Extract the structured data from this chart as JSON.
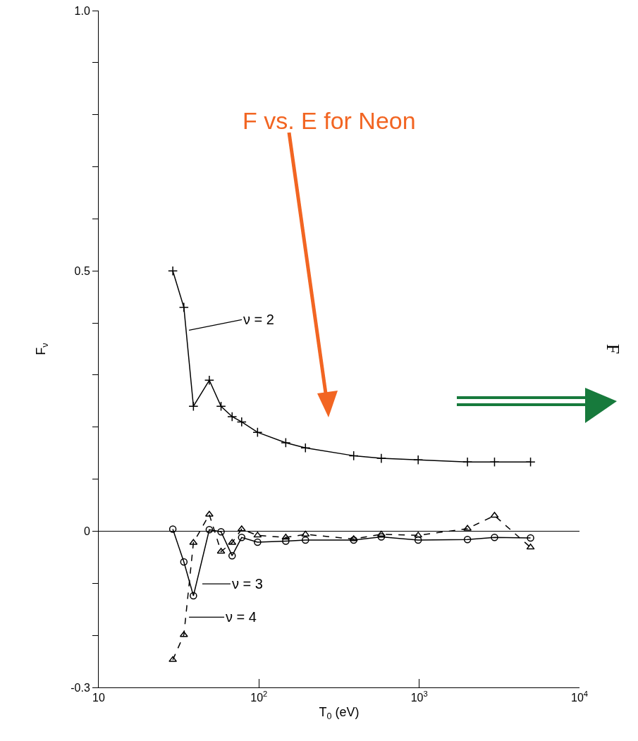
{
  "chart_data": {
    "type": "line",
    "xlabel": "T$_{0}$ (eV)",
    "ylabel": "F$_{ν}$",
    "x": [
      29,
      34,
      39,
      49,
      58,
      68,
      78,
      98,
      147,
      195,
      390,
      580,
      985,
      2000,
      2950,
      4950
    ],
    "series": [
      {
        "color": "#000000",
        "marker": "cross",
        "line_style": "solid",
        "values": [
          0.5,
          0.43,
          0.24,
          0.29,
          0.24,
          0.22,
          0.21,
          0.19,
          0.17,
          0.16,
          0.145,
          0.14,
          0.137,
          0.133,
          0.133,
          0.133
        ]
      },
      {
        "color": "#000000",
        "marker": "circle",
        "line_style": "solid",
        "values": [
          0.004,
          -0.059,
          -0.124,
          0.003,
          -0.001,
          -0.047,
          -0.012,
          -0.021,
          -0.019,
          -0.017,
          -0.017,
          -0.011,
          -0.017,
          -0.016,
          -0.012,
          -0.013
        ]
      },
      {
        "color": "#000000",
        "marker": "triangle",
        "line_style": "dashed",
        "values": [
          -0.247,
          -0.199,
          -0.022,
          0.032,
          -0.039,
          -0.022,
          0.004,
          -0.008,
          -0.012,
          -0.006,
          -0.015,
          -0.006,
          -0.008,
          0.005,
          0.03,
          -0.031
        ]
      }
    ],
    "xlim": [
      10,
      10000
    ],
    "xticks": [
      10,
      {
        "value": 100,
        "label": "10$^{2}$"
      },
      {
        "value": 1000,
        "label": "10$^{3}$"
      },
      {
        "value": 10000,
        "label": "10$^{4}$"
      }
    ],
    "log": "x",
    "ylim": [
      -0.3,
      1.0
    ],
    "yticks": [
      {
        "value": -0.3,
        "label": "-0.3"
      },
      {
        "value": -0.2,
        "label": null
      },
      {
        "value": -0.1,
        "label": null
      },
      0,
      {
        "value": 0.1,
        "label": null
      },
      {
        "value": 0.2,
        "label": null
      },
      {
        "value": 0.3,
        "label": null
      },
      {
        "value": 0.4,
        "label": null
      },
      0.5,
      {
        "value": 0.6,
        "label": null
      },
      {
        "value": 0.7,
        "label": null
      },
      {
        "value": 0.8,
        "label": null
      },
      {
        "value": 0.9,
        "label": null
      },
      {
        "value": 1.0,
        "label": "1.0"
      }
    ],
    "ref_lines": [
      {
        "axis": "y",
        "value": 0
      }
    ],
    "annotations": [
      {
        "text": "ν = 2",
        "x": 36.6,
        "y": 0.386
      },
      "ν = 3",
      {
        "text": "ν = 4",
        "x": 36.6,
        "y": -0.165
      },
      "F vs. E for Neon",
      "F"
    ],
    "grid": false
  }
}
